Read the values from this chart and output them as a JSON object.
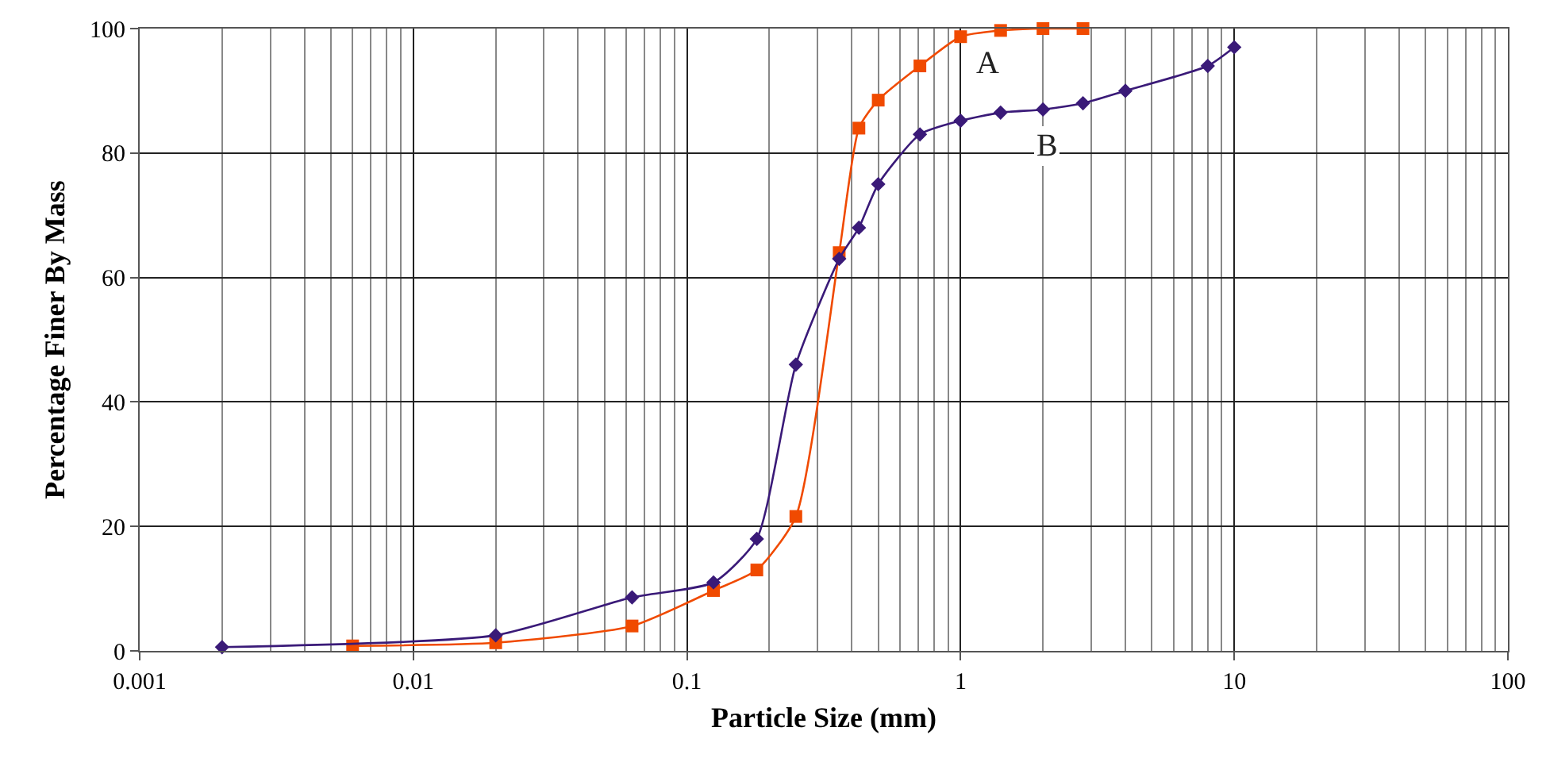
{
  "chart_data": {
    "type": "line",
    "xlabel": "Particle Size (mm)",
    "ylabel": "Percentage Finer By Mass",
    "log": "x",
    "grid": true,
    "legend": false,
    "xlim": [
      0.001,
      100
    ],
    "xticks": [
      0.001,
      0.01,
      0.1,
      1,
      10,
      100
    ],
    "ylim": [
      0,
      100
    ],
    "yticks": [
      0,
      20,
      40,
      60,
      80,
      100
    ],
    "series": [
      {
        "name": "A",
        "color": "#f04a00",
        "marker": "square",
        "x": [
          0.006,
          0.02,
          0.063,
          0.125,
          0.18,
          0.25,
          0.36,
          0.425,
          0.5,
          0.71,
          1,
          1.4,
          2,
          2.8
        ],
        "values": [
          0.8,
          1.3,
          4,
          9.7,
          13,
          21.6,
          64,
          84,
          88.5,
          94,
          98.7,
          99.7,
          100,
          100
        ]
      },
      {
        "name": "B",
        "color": "#3a1a78",
        "marker": "diamond",
        "x": [
          0.002,
          0.02,
          0.063,
          0.125,
          0.18,
          0.25,
          0.36,
          0.425,
          0.5,
          0.71,
          1,
          1.4,
          2,
          2.8,
          4,
          8,
          10
        ],
        "values": [
          0.6,
          2.5,
          8.6,
          11,
          18,
          46,
          63,
          68,
          75,
          83,
          85.2,
          86.5,
          87,
          88,
          90,
          94,
          97
        ]
      }
    ]
  }
}
